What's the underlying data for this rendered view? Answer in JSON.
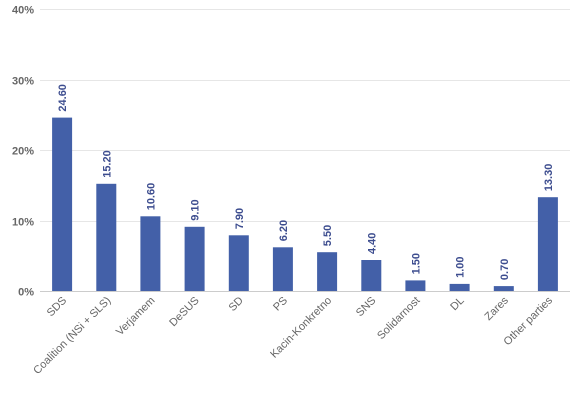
{
  "chart_data": {
    "type": "bar",
    "title": "",
    "xlabel": "",
    "ylabel": "",
    "ylim": [
      0,
      40
    ],
    "yticks": [
      "0%",
      "10%",
      "20%",
      "30%",
      "40%"
    ],
    "grid": true,
    "legend": "none",
    "bar_color": "#4360a8",
    "label_color": "#3d4d8f",
    "categories": [
      "SDS",
      "Coalition (NSi + SLS)",
      "Verjamem",
      "DeSUS",
      "SD",
      "PS",
      "Kacin-Konkretno",
      "SNS",
      "Solidarnost",
      "DL",
      "Zares",
      "Other parties"
    ],
    "values": [
      24.6,
      15.2,
      10.6,
      9.1,
      7.9,
      6.2,
      5.5,
      4.4,
      1.5,
      1.0,
      0.7,
      13.3
    ],
    "data_labels": [
      "24.60",
      "15.20",
      "10.60",
      "9.10",
      "7.90",
      "6.20",
      "5.50",
      "4.40",
      "1.50",
      "1.00",
      "0.70",
      "13.30"
    ]
  }
}
